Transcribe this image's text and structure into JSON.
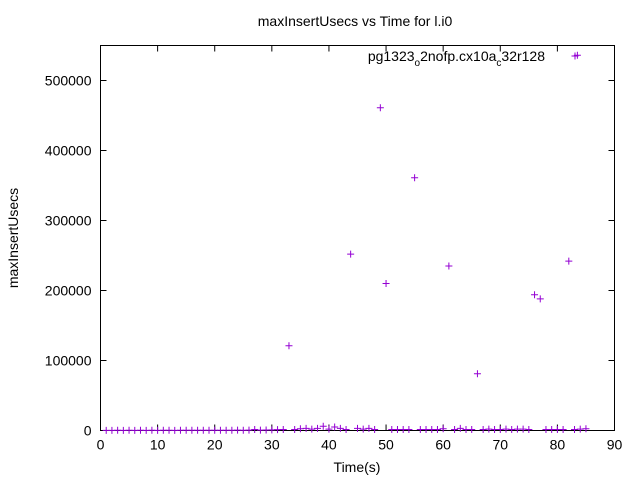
{
  "chart_data": {
    "type": "scatter",
    "title": "maxInsertUsecs vs Time for l.i0",
    "xlabel": "Time(s)",
    "ylabel": "maxInsertUsecs",
    "xlim": [
      0,
      90
    ],
    "ylim": [
      0,
      550000
    ],
    "xticks": [
      0,
      10,
      20,
      30,
      40,
      50,
      60,
      70,
      80,
      90
    ],
    "yticks": [
      0,
      100000,
      200000,
      300000,
      400000,
      500000
    ],
    "grid": false,
    "legend_position": "top-right",
    "marker": "plus",
    "series": [
      {
        "name": "pg1323",
        "name_sub1": "o",
        "name_mid": "2nofp.cx10a",
        "name_sub2": "c",
        "name_end": "32r128",
        "color": "#9400d3",
        "points": [
          [
            1,
            200
          ],
          [
            2,
            200
          ],
          [
            3,
            300
          ],
          [
            4,
            200
          ],
          [
            5,
            300
          ],
          [
            6,
            200
          ],
          [
            7,
            300
          ],
          [
            8,
            200
          ],
          [
            9,
            300
          ],
          [
            10,
            200
          ],
          [
            11,
            300
          ],
          [
            12,
            300
          ],
          [
            13,
            200
          ],
          [
            14,
            300
          ],
          [
            15,
            300
          ],
          [
            16,
            300
          ],
          [
            17,
            400
          ],
          [
            18,
            300
          ],
          [
            19,
            400
          ],
          [
            20,
            300
          ],
          [
            21,
            400
          ],
          [
            22,
            300
          ],
          [
            23,
            400
          ],
          [
            24,
            500
          ],
          [
            25,
            400
          ],
          [
            26,
            600
          ],
          [
            27,
            1500
          ],
          [
            28,
            600
          ],
          [
            29,
            800
          ],
          [
            30,
            900
          ],
          [
            31,
            1200
          ],
          [
            32,
            1500
          ],
          [
            33,
            121000
          ],
          [
            34,
            1500
          ],
          [
            35,
            2500
          ],
          [
            36,
            3000
          ],
          [
            37,
            2000
          ],
          [
            38,
            3000
          ],
          [
            39,
            6000
          ],
          [
            40,
            2000
          ],
          [
            41,
            5000
          ],
          [
            42,
            3000
          ],
          [
            43,
            1500
          ],
          [
            43.8,
            252000
          ],
          [
            45,
            3000
          ],
          [
            46,
            2000
          ],
          [
            47,
            3000
          ],
          [
            48,
            1500
          ],
          [
            49,
            461000
          ],
          [
            50,
            210000
          ],
          [
            51,
            1500
          ],
          [
            52,
            1500
          ],
          [
            53,
            1500
          ],
          [
            54,
            1500
          ],
          [
            55,
            361000
          ],
          [
            56,
            1500
          ],
          [
            57,
            1500
          ],
          [
            58,
            1500
          ],
          [
            59,
            1500
          ],
          [
            60,
            2500
          ],
          [
            61,
            235000
          ],
          [
            62,
            1500
          ],
          [
            63,
            3000
          ],
          [
            64,
            1500
          ],
          [
            65,
            1500
          ],
          [
            66,
            81000
          ],
          [
            67,
            1500
          ],
          [
            68,
            2000
          ],
          [
            69,
            1500
          ],
          [
            70,
            1500
          ],
          [
            71,
            2000
          ],
          [
            72,
            1500
          ],
          [
            73,
            2000
          ],
          [
            74,
            2000
          ],
          [
            75,
            1500
          ],
          [
            76,
            194000
          ],
          [
            77,
            188000
          ],
          [
            78,
            1500
          ],
          [
            79,
            1500
          ],
          [
            80,
            1500
          ],
          [
            81,
            1500
          ],
          [
            82,
            242000
          ],
          [
            83,
            1500
          ],
          [
            83.5,
            536000
          ],
          [
            84,
            2000
          ],
          [
            85,
            2500
          ]
        ]
      }
    ]
  }
}
